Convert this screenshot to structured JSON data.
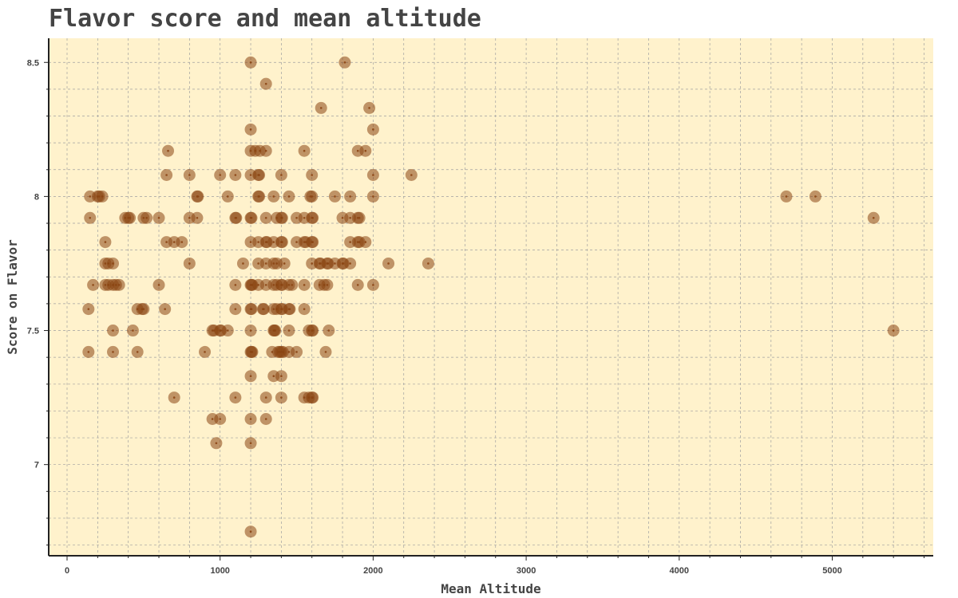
{
  "chart_data": {
    "type": "scatter",
    "title": "Flavor score and mean altitude",
    "xlabel": "Mean Altitude",
    "ylabel": "Score on Flavor",
    "xlim": [
      -120,
      5660
    ],
    "ylim": [
      6.66,
      8.59
    ],
    "x_ticks": [
      0,
      1000,
      2000,
      3000,
      4000,
      5000
    ],
    "x_tick_labels": [
      "0",
      "1000",
      "2000",
      "3000",
      "4000",
      "5000"
    ],
    "y_ticks": [
      7,
      7.5,
      8,
      8.5
    ],
    "y_tick_labels": [
      "7",
      "7.5",
      "8",
      "8.5"
    ],
    "grid": true,
    "colors": {
      "background": "#fff2cc",
      "marker": "#8b4513",
      "grid": "#a0a0a0",
      "axis": "#222222",
      "text": "#444444"
    },
    "points": [
      [
        1200,
        8.5
      ],
      [
        1815,
        8.5
      ],
      [
        1300,
        8.42
      ],
      [
        1660,
        8.33
      ],
      [
        1975,
        8.33
      ],
      [
        1200,
        8.25
      ],
      [
        2000,
        8.25
      ],
      [
        660,
        8.17
      ],
      [
        1200,
        8.17
      ],
      [
        1230,
        8.17
      ],
      [
        1260,
        8.17
      ],
      [
        1300,
        8.17
      ],
      [
        1550,
        8.17
      ],
      [
        1900,
        8.17
      ],
      [
        1950,
        8.17
      ],
      [
        650,
        8.08
      ],
      [
        800,
        8.08
      ],
      [
        1000,
        8.08
      ],
      [
        1100,
        8.08
      ],
      [
        1200,
        8.08
      ],
      [
        1250,
        8.08
      ],
      [
        1255,
        8.08
      ],
      [
        1400,
        8.08
      ],
      [
        1600,
        8.08
      ],
      [
        2000,
        8.08
      ],
      [
        2250,
        8.08
      ],
      [
        150,
        8.0
      ],
      [
        200,
        8.0
      ],
      [
        210,
        8.0
      ],
      [
        230,
        8.0
      ],
      [
        850,
        8.0
      ],
      [
        855,
        8.0
      ],
      [
        1050,
        8.0
      ],
      [
        1250,
        8.0
      ],
      [
        1255,
        8.0
      ],
      [
        1350,
        8.0
      ],
      [
        1450,
        8.0
      ],
      [
        1590,
        8.0
      ],
      [
        1600,
        8.0
      ],
      [
        1750,
        8.0
      ],
      [
        1850,
        8.0
      ],
      [
        2000,
        8.0
      ],
      [
        4700,
        8.0
      ],
      [
        4890,
        8.0
      ],
      [
        150,
        7.92
      ],
      [
        380,
        7.92
      ],
      [
        400,
        7.92
      ],
      [
        410,
        7.92
      ],
      [
        500,
        7.92
      ],
      [
        520,
        7.92
      ],
      [
        600,
        7.92
      ],
      [
        800,
        7.92
      ],
      [
        850,
        7.92
      ],
      [
        1100,
        7.92
      ],
      [
        1105,
        7.92
      ],
      [
        1200,
        7.92
      ],
      [
        1205,
        7.92
      ],
      [
        1300,
        7.92
      ],
      [
        1370,
        7.92
      ],
      [
        1400,
        7.92
      ],
      [
        1405,
        7.92
      ],
      [
        1500,
        7.92
      ],
      [
        1550,
        7.92
      ],
      [
        1600,
        7.92
      ],
      [
        1605,
        7.92
      ],
      [
        1800,
        7.92
      ],
      [
        1850,
        7.92
      ],
      [
        1900,
        7.92
      ],
      [
        1910,
        7.92
      ],
      [
        5270,
        7.92
      ],
      [
        250,
        7.83
      ],
      [
        650,
        7.83
      ],
      [
        700,
        7.83
      ],
      [
        750,
        7.83
      ],
      [
        1200,
        7.83
      ],
      [
        1250,
        7.83
      ],
      [
        1300,
        7.83
      ],
      [
        1305,
        7.83
      ],
      [
        1350,
        7.83
      ],
      [
        1400,
        7.83
      ],
      [
        1405,
        7.83
      ],
      [
        1500,
        7.83
      ],
      [
        1550,
        7.83
      ],
      [
        1560,
        7.83
      ],
      [
        1600,
        7.83
      ],
      [
        1605,
        7.83
      ],
      [
        1850,
        7.83
      ],
      [
        1900,
        7.83
      ],
      [
        1910,
        7.83
      ],
      [
        1950,
        7.83
      ],
      [
        250,
        7.75
      ],
      [
        270,
        7.75
      ],
      [
        300,
        7.75
      ],
      [
        800,
        7.75
      ],
      [
        1150,
        7.75
      ],
      [
        1250,
        7.75
      ],
      [
        1300,
        7.75
      ],
      [
        1350,
        7.75
      ],
      [
        1370,
        7.75
      ],
      [
        1420,
        7.75
      ],
      [
        1600,
        7.75
      ],
      [
        1650,
        7.75
      ],
      [
        1655,
        7.75
      ],
      [
        1700,
        7.75
      ],
      [
        1705,
        7.75
      ],
      [
        1750,
        7.75
      ],
      [
        1800,
        7.75
      ],
      [
        1805,
        7.75
      ],
      [
        1850,
        7.75
      ],
      [
        2100,
        7.75
      ],
      [
        2360,
        7.75
      ],
      [
        170,
        7.67
      ],
      [
        250,
        7.67
      ],
      [
        270,
        7.67
      ],
      [
        300,
        7.67
      ],
      [
        320,
        7.67
      ],
      [
        340,
        7.67
      ],
      [
        600,
        7.67
      ],
      [
        1100,
        7.67
      ],
      [
        1200,
        7.67
      ],
      [
        1205,
        7.67
      ],
      [
        1210,
        7.67
      ],
      [
        1250,
        7.67
      ],
      [
        1300,
        7.67
      ],
      [
        1350,
        7.67
      ],
      [
        1370,
        7.67
      ],
      [
        1400,
        7.67
      ],
      [
        1405,
        7.67
      ],
      [
        1450,
        7.67
      ],
      [
        1470,
        7.67
      ],
      [
        1550,
        7.67
      ],
      [
        1650,
        7.67
      ],
      [
        1680,
        7.67
      ],
      [
        1700,
        7.67
      ],
      [
        1900,
        7.67
      ],
      [
        2000,
        7.67
      ],
      [
        140,
        7.58
      ],
      [
        460,
        7.58
      ],
      [
        490,
        7.58
      ],
      [
        500,
        7.58
      ],
      [
        640,
        7.58
      ],
      [
        1100,
        7.58
      ],
      [
        1200,
        7.58
      ],
      [
        1205,
        7.58
      ],
      [
        1280,
        7.58
      ],
      [
        1285,
        7.58
      ],
      [
        1350,
        7.58
      ],
      [
        1370,
        7.58
      ],
      [
        1400,
        7.58
      ],
      [
        1405,
        7.58
      ],
      [
        1450,
        7.58
      ],
      [
        1455,
        7.58
      ],
      [
        1550,
        7.58
      ],
      [
        300,
        7.5
      ],
      [
        430,
        7.5
      ],
      [
        950,
        7.5
      ],
      [
        960,
        7.5
      ],
      [
        1000,
        7.5
      ],
      [
        1005,
        7.5
      ],
      [
        1050,
        7.5
      ],
      [
        1200,
        7.5
      ],
      [
        1350,
        7.5
      ],
      [
        1355,
        7.5
      ],
      [
        1360,
        7.5
      ],
      [
        1450,
        7.5
      ],
      [
        1580,
        7.5
      ],
      [
        1600,
        7.5
      ],
      [
        1605,
        7.5
      ],
      [
        1710,
        7.5
      ],
      [
        5400,
        7.5
      ],
      [
        140,
        7.42
      ],
      [
        300,
        7.42
      ],
      [
        460,
        7.42
      ],
      [
        900,
        7.42
      ],
      [
        1200,
        7.42
      ],
      [
        1205,
        7.42
      ],
      [
        1210,
        7.42
      ],
      [
        1340,
        7.42
      ],
      [
        1380,
        7.42
      ],
      [
        1390,
        7.42
      ],
      [
        1400,
        7.42
      ],
      [
        1410,
        7.42
      ],
      [
        1450,
        7.42
      ],
      [
        1500,
        7.42
      ],
      [
        1690,
        7.42
      ],
      [
        1200,
        7.33
      ],
      [
        1350,
        7.33
      ],
      [
        1400,
        7.33
      ],
      [
        700,
        7.25
      ],
      [
        1100,
        7.25
      ],
      [
        1300,
        7.25
      ],
      [
        1400,
        7.25
      ],
      [
        1550,
        7.25
      ],
      [
        1580,
        7.25
      ],
      [
        1600,
        7.25
      ],
      [
        1605,
        7.25
      ],
      [
        950,
        7.17
      ],
      [
        1000,
        7.17
      ],
      [
        1200,
        7.17
      ],
      [
        1300,
        7.17
      ],
      [
        975,
        7.08
      ],
      [
        1200,
        7.08
      ],
      [
        1200,
        6.75
      ]
    ]
  }
}
